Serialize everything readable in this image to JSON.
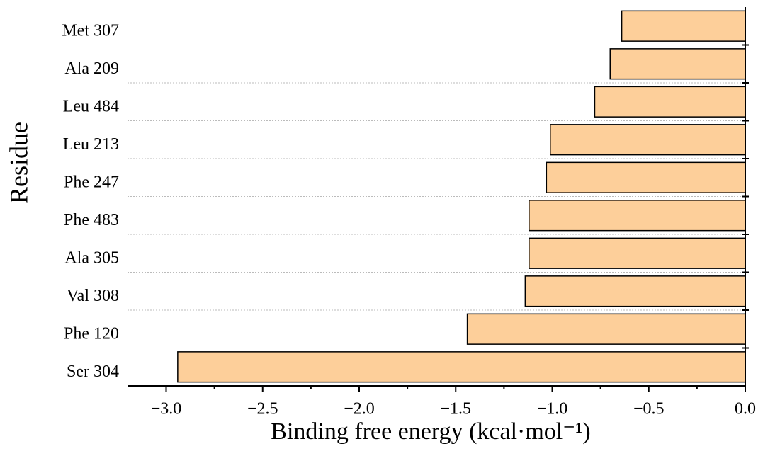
{
  "chart_data": {
    "type": "barh",
    "xlabel": "Binding free energy (kcal·mol⁻¹)",
    "ylabel": "Residue",
    "categories": [
      "Met 307",
      "Ala 209",
      "Leu 484",
      "Leu 213",
      "Phe 247",
      "Phe 483",
      "Ala 305",
      "Val 308",
      "Phe 120",
      "Ser 304"
    ],
    "values": [
      -0.64,
      -0.7,
      -0.78,
      -1.01,
      -1.03,
      -1.12,
      -1.12,
      -1.14,
      -1.44,
      -2.94
    ],
    "color": "#fdcf9a",
    "xlim": [
      -3.2,
      0
    ],
    "xticks": [
      {
        "value": -3,
        "label": "−3.0"
      },
      {
        "value": -2.5,
        "label": "−2.5"
      },
      {
        "value": -2,
        "label": "−2.0"
      },
      {
        "value": -1.5,
        "label": "−1.5"
      },
      {
        "value": -1,
        "label": "−1.0"
      },
      {
        "value": -0.5,
        "label": "−0.5"
      },
      {
        "value": 0,
        "label": "0.0"
      }
    ],
    "grid": true
  }
}
